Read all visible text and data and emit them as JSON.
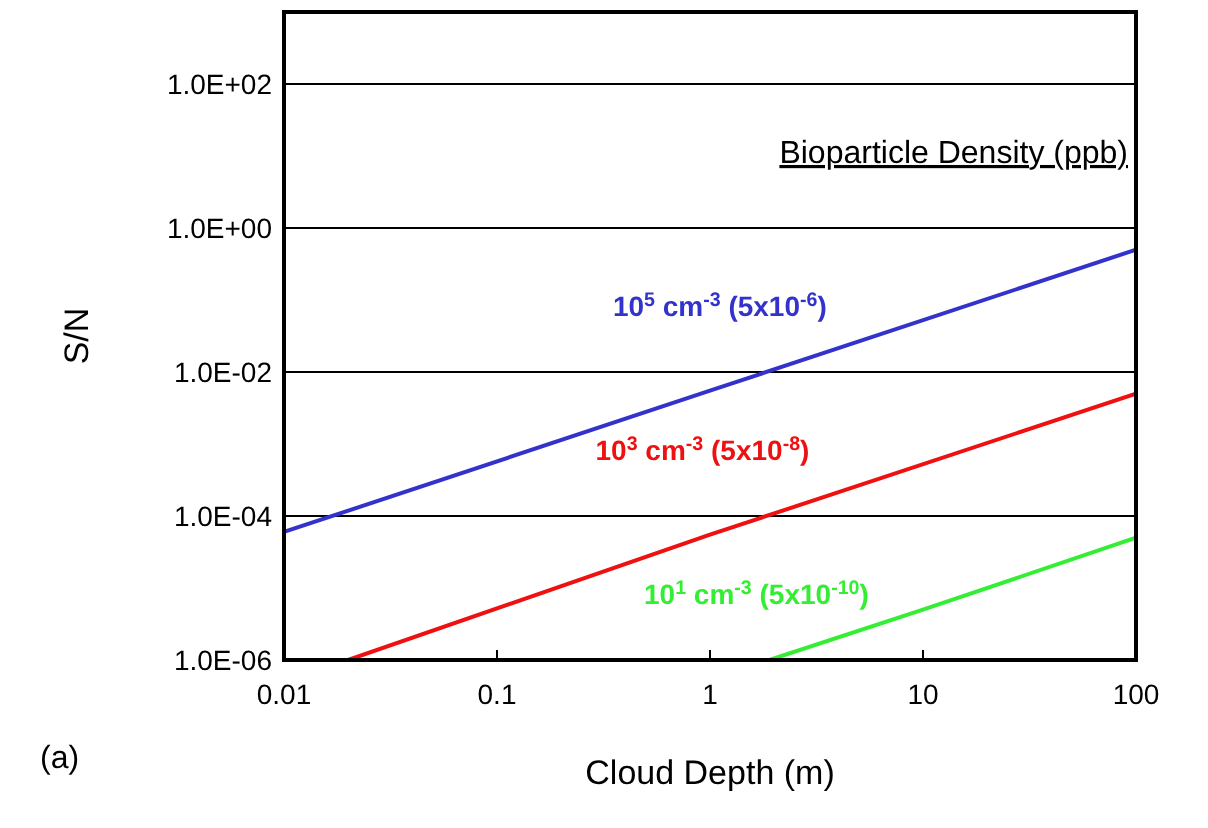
{
  "chart_data": {
    "type": "line",
    "xlabel": "Cloud Depth (m)",
    "ylabel": "S/N",
    "legend_title": "Bioparticle Density (ppb)",
    "log": "xy",
    "grid": "y",
    "legend": false,
    "line_style": "solid",
    "marker": "none",
    "xlim": [
      0.01,
      100
    ],
    "xticks": [
      0.01,
      0.1,
      1,
      10,
      100
    ],
    "ylim": [
      1e-06,
      1000
    ],
    "yticks": [
      {
        "value": 1e-06,
        "label": "1.0E-06"
      },
      {
        "value": 0.0001,
        "label": "1.0E-04"
      },
      {
        "value": 0.01,
        "label": "1.0E-02"
      },
      {
        "value": 1,
        "label": "1.0E+00"
      },
      {
        "value": 100,
        "label": "1.0E+02"
      }
    ],
    "series": [
      {
        "name": "10$^{5}$ cm$^{-3}$ (5x10$^{-6}$)",
        "color": "#3333cc",
        "x": [
          0.01,
          1,
          100
        ],
        "values": [
          6e-05,
          0.0055,
          0.5
        ]
      },
      {
        "name": "10$^{3}$ cm$^{-3}$ (5x10$^{-8}$)",
        "color": "#ee1111",
        "x": [
          0.02,
          1,
          100
        ],
        "values": [
          1e-06,
          5.5e-05,
          0.005
        ]
      },
      {
        "name": "10$^{1}$ cm$^{-3}$ (5x10$^{-10}$)",
        "color": "#33ee33",
        "x": [
          1.9,
          10,
          100
        ],
        "values": [
          1e-06,
          5e-06,
          5e-05
        ]
      }
    ],
    "annotations": [
      "(a)"
    ]
  }
}
